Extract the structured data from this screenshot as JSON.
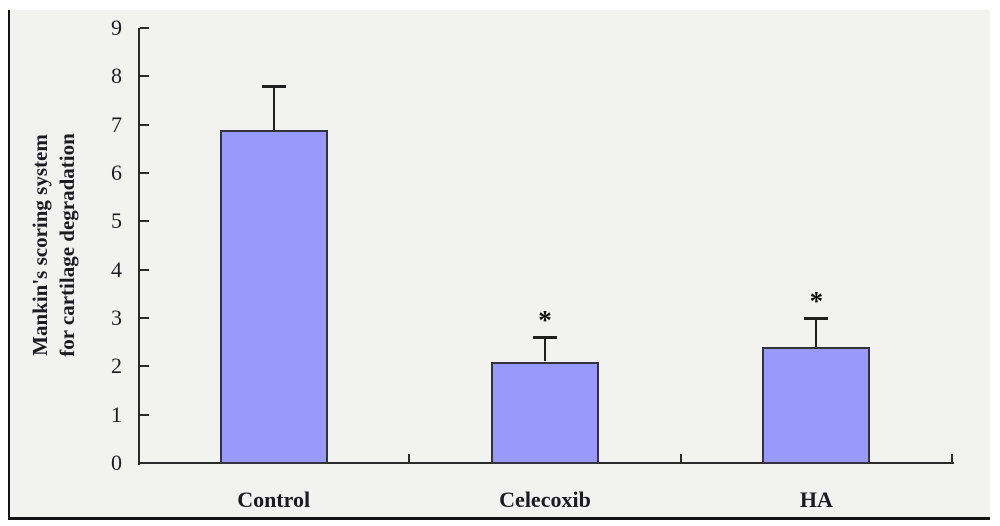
{
  "figure": {
    "panel_bg": "#F2F3F1",
    "frame_border_color": "#141414",
    "outer_bg": "#FFFFFF"
  },
  "chart_data": {
    "type": "bar",
    "categories": [
      "Control",
      "Celecoxib",
      "HA"
    ],
    "values": [
      6.9,
      2.1,
      2.4
    ],
    "errors_up": [
      0.9,
      0.5,
      0.6
    ],
    "significance_labels": [
      "",
      "*",
      "*"
    ],
    "ylabel_line1": "Mankin's scoring system",
    "ylabel_line2": "for cartilage degradation",
    "xlabel": "",
    "title": "",
    "ylim": [
      0,
      9
    ],
    "ytick_values": [
      0,
      1,
      2,
      3,
      4,
      5,
      6,
      7,
      8,
      9
    ],
    "grid": "off",
    "legend": "none",
    "bar_fill": "#9999FA",
    "bar_border": "#33333D",
    "axis_color": "#2B2B2B",
    "text_color": "#1C1B22"
  }
}
